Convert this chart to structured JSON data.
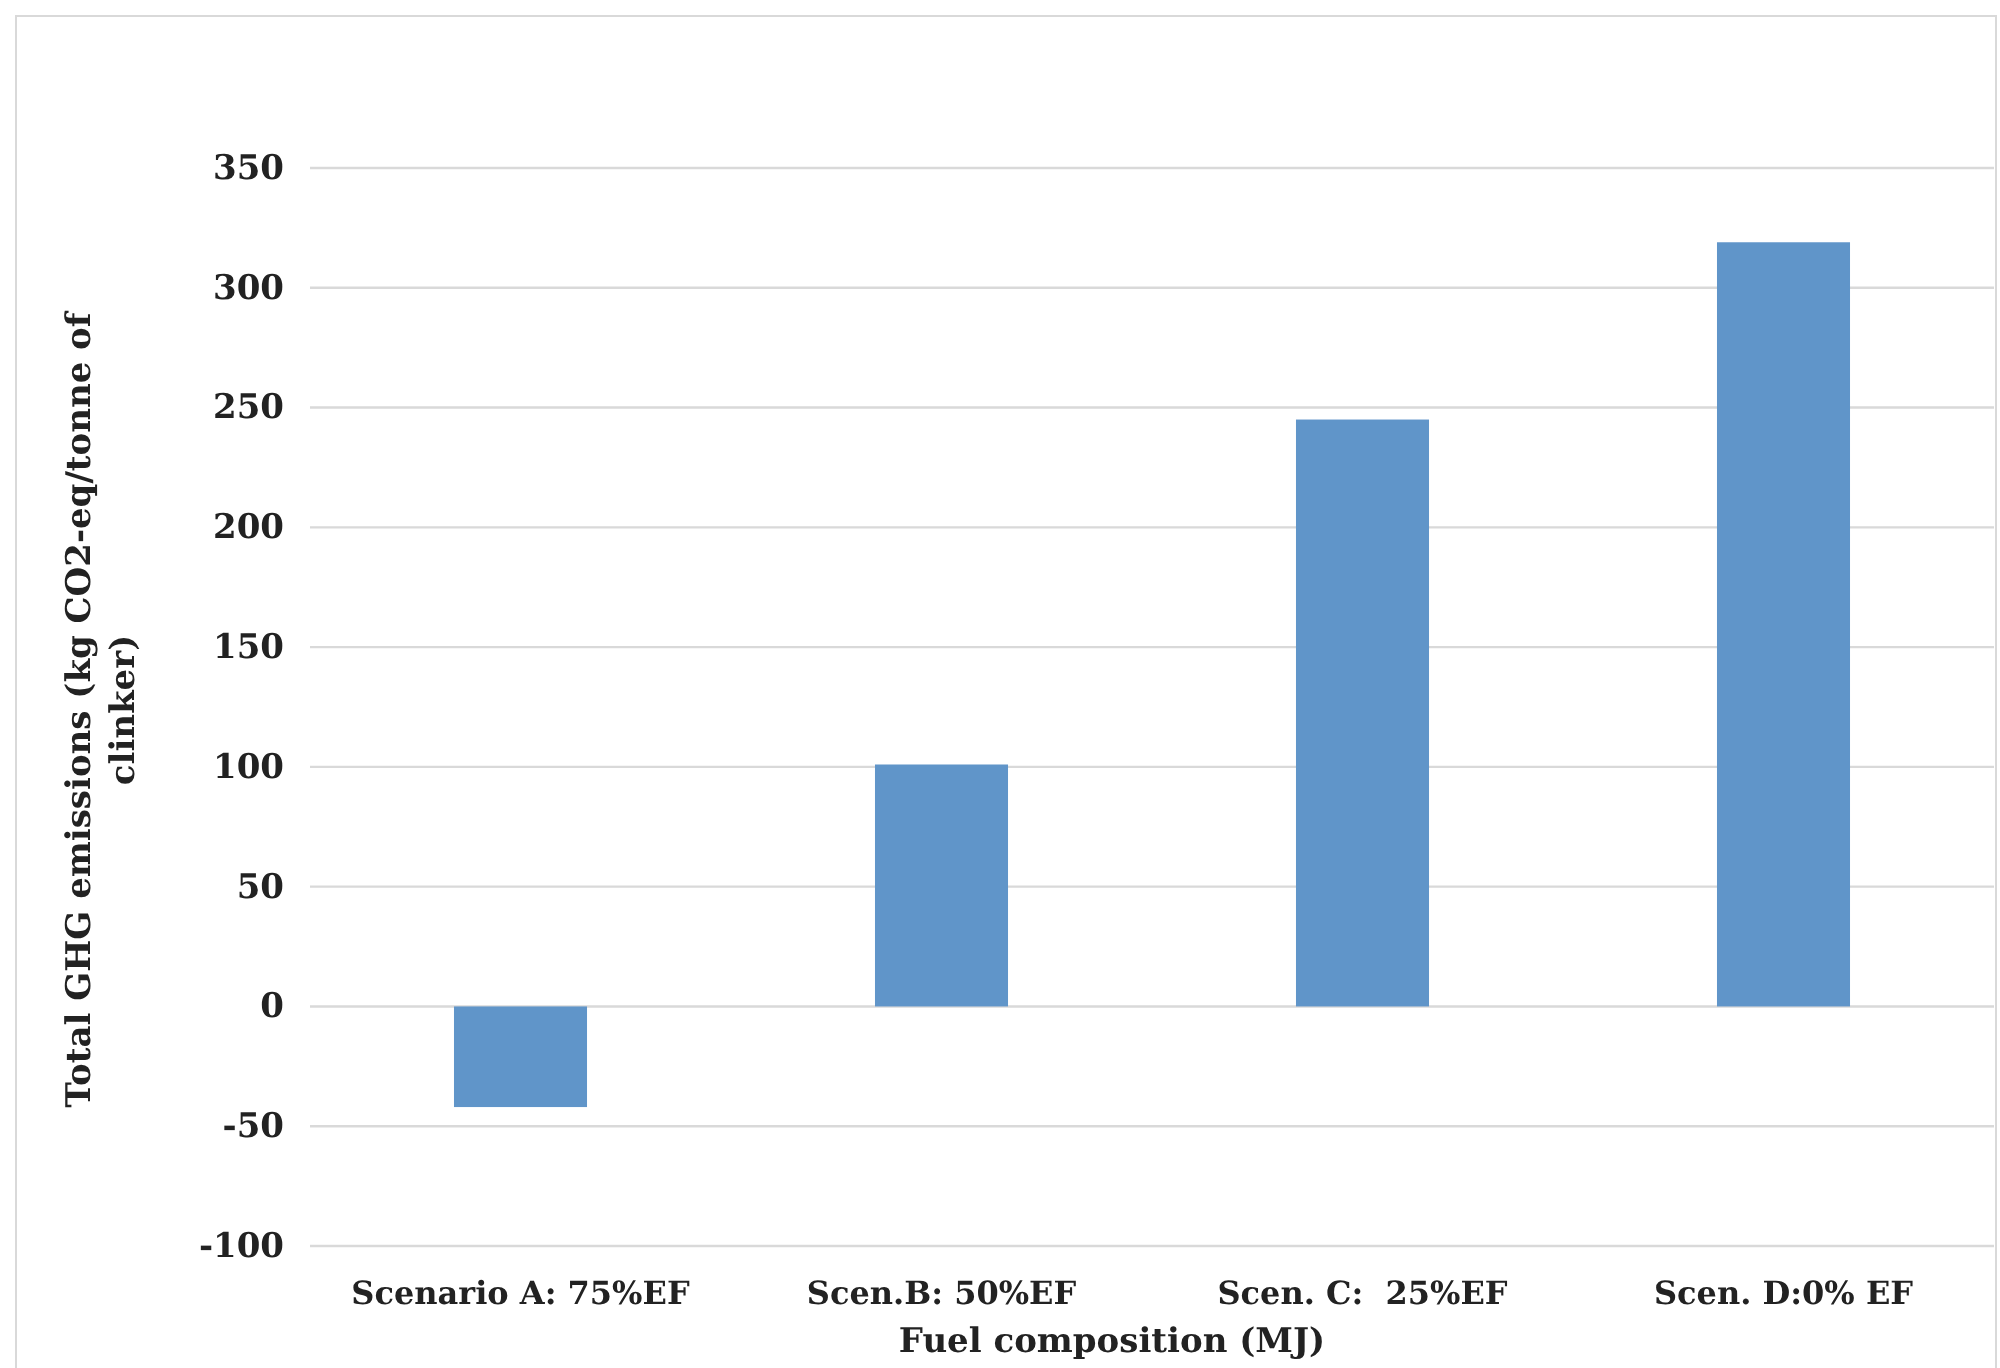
{
  "chart_data": {
    "type": "bar",
    "xlabel": "Fuel composition (MJ)",
    "ylabel": "Total GHG emissions (kg CO2-eq/tonne of clinker)",
    "categories": [
      "Scenario A: 75%EF",
      "Scen.B: 50%EF",
      "Scen. C:  25%EF",
      "Scen. D:0% EF"
    ],
    "values": [
      -42,
      101,
      245,
      319
    ],
    "color": "#6095c9",
    "ylim": [
      -100,
      350
    ],
    "yticks": [
      -100,
      -50,
      0,
      50,
      100,
      150,
      200,
      250,
      300,
      350
    ],
    "grid": "y"
  }
}
